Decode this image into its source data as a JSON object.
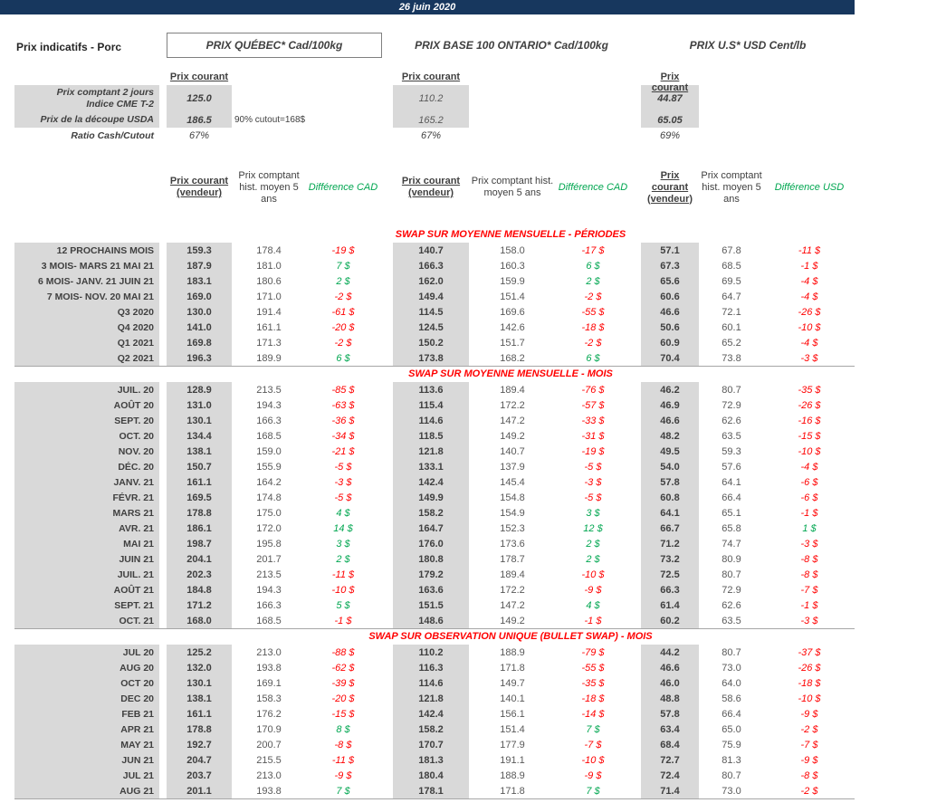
{
  "topbar": {
    "date": "26 juin 2020"
  },
  "header": {
    "title": "Prix indicatifs - Porc",
    "quebec": "PRIX QUÉBEC* Cad/100kg",
    "ontario": "PRIX BASE 100 ONTARIO* Cad/100kg",
    "us": "PRIX U.S* USD Cent/lb",
    "prix_courant": "Prix courant"
  },
  "summary": {
    "rows": [
      {
        "label": "Prix comptant 2 jours\nIndice CME T-2",
        "qc": "125.0",
        "note": "",
        "on": "110.2",
        "us": "44.87"
      },
      {
        "label": "Prix de la découpe USDA",
        "qc": "186.5",
        "note": "90% cutout=168$",
        "on": "165.2",
        "us": "65.05"
      },
      {
        "label": "Ratio Cash/Cutout",
        "qc": "67%",
        "note": "",
        "on": "67%",
        "us": "69%"
      }
    ]
  },
  "columns": {
    "pc": "Prix courant (vendeur)",
    "hist": "Prix comptant hist. moyen 5 ans",
    "diff_cad": "Différence CAD",
    "diff_usd": "Différence USD"
  },
  "sections": [
    {
      "title": "SWAP SUR MOYENNE MENSUELLE - PÉRIODES",
      "rows": [
        [
          "12 PROCHAINS MOIS",
          "159.3",
          "178.4",
          "-19 $",
          "140.7",
          "158.0",
          "-17 $",
          "57.1",
          "67.8",
          "-11 $"
        ],
        [
          "3 MOIS- MARS 21 MAI 21",
          "187.9",
          "181.0",
          "7 $",
          "166.3",
          "160.3",
          "6 $",
          "67.3",
          "68.5",
          "-1 $"
        ],
        [
          "6 MOIS- JANV. 21 JUIN 21",
          "183.1",
          "180.6",
          "2 $",
          "162.0",
          "159.9",
          "2 $",
          "65.6",
          "69.5",
          "-4 $"
        ],
        [
          "7 MOIS- NOV. 20 MAI 21",
          "169.0",
          "171.0",
          "-2 $",
          "149.4",
          "151.4",
          "-2 $",
          "60.6",
          "64.7",
          "-4 $"
        ],
        [
          "Q3 2020",
          "130.0",
          "191.4",
          "-61 $",
          "114.5",
          "169.6",
          "-55 $",
          "46.6",
          "72.1",
          "-26 $"
        ],
        [
          "Q4 2020",
          "141.0",
          "161.1",
          "-20 $",
          "124.5",
          "142.6",
          "-18 $",
          "50.6",
          "60.1",
          "-10 $"
        ],
        [
          "Q1 2021",
          "169.8",
          "171.3",
          "-2 $",
          "150.2",
          "151.7",
          "-2 $",
          "60.9",
          "65.2",
          "-4 $"
        ],
        [
          "Q2 2021",
          "196.3",
          "189.9",
          "6 $",
          "173.8",
          "168.2",
          "6 $",
          "70.4",
          "73.8",
          "-3 $"
        ]
      ]
    },
    {
      "title": "SWAP SUR MOYENNE MENSUELLE - MOIS",
      "rows": [
        [
          "JUIL. 20",
          "128.9",
          "213.5",
          "-85 $",
          "113.6",
          "189.4",
          "-76 $",
          "46.2",
          "80.7",
          "-35 $"
        ],
        [
          "AOÛT 20",
          "131.0",
          "194.3",
          "-63 $",
          "115.4",
          "172.2",
          "-57 $",
          "46.9",
          "72.9",
          "-26 $"
        ],
        [
          "SEPT. 20",
          "130.1",
          "166.3",
          "-36 $",
          "114.6",
          "147.2",
          "-33 $",
          "46.6",
          "62.6",
          "-16 $"
        ],
        [
          "OCT. 20",
          "134.4",
          "168.5",
          "-34 $",
          "118.5",
          "149.2",
          "-31 $",
          "48.2",
          "63.5",
          "-15 $"
        ],
        [
          "NOV. 20",
          "138.1",
          "159.0",
          "-21 $",
          "121.8",
          "140.7",
          "-19 $",
          "49.5",
          "59.3",
          "-10 $"
        ],
        [
          "DÉC. 20",
          "150.7",
          "155.9",
          "-5 $",
          "133.1",
          "137.9",
          "-5 $",
          "54.0",
          "57.6",
          "-4 $"
        ],
        [
          "JANV. 21",
          "161.1",
          "164.2",
          "-3 $",
          "142.4",
          "145.4",
          "-3 $",
          "57.8",
          "64.1",
          "-6 $"
        ],
        [
          "FÉVR. 21",
          "169.5",
          "174.8",
          "-5 $",
          "149.9",
          "154.8",
          "-5 $",
          "60.8",
          "66.4",
          "-6 $"
        ],
        [
          "MARS 21",
          "178.8",
          "175.0",
          "4 $",
          "158.2",
          "154.9",
          "3 $",
          "64.1",
          "65.1",
          "-1 $"
        ],
        [
          "AVR. 21",
          "186.1",
          "172.0",
          "14 $",
          "164.7",
          "152.3",
          "12 $",
          "66.7",
          "65.8",
          "1 $"
        ],
        [
          "MAI 21",
          "198.7",
          "195.8",
          "3 $",
          "176.0",
          "173.6",
          "2 $",
          "71.2",
          "74.7",
          "-3 $"
        ],
        [
          "JUIN 21",
          "204.1",
          "201.7",
          "2 $",
          "180.8",
          "178.7",
          "2 $",
          "73.2",
          "80.9",
          "-8 $"
        ],
        [
          "JUIL. 21",
          "202.3",
          "213.5",
          "-11 $",
          "179.2",
          "189.4",
          "-10 $",
          "72.5",
          "80.7",
          "-8 $"
        ],
        [
          "AOÛT 21",
          "184.8",
          "194.3",
          "-10 $",
          "163.6",
          "172.2",
          "-9 $",
          "66.3",
          "72.9",
          "-7 $"
        ],
        [
          "SEPT. 21",
          "171.2",
          "166.3",
          "5 $",
          "151.5",
          "147.2",
          "4 $",
          "61.4",
          "62.6",
          "-1 $"
        ],
        [
          "OCT. 21",
          "168.0",
          "168.5",
          "-1 $",
          "148.6",
          "149.2",
          "-1 $",
          "60.2",
          "63.5",
          "-3 $"
        ]
      ]
    },
    {
      "title": "SWAP SUR OBSERVATION UNIQUE (BULLET SWAP) - MOIS",
      "rows": [
        [
          "JUL 20",
          "125.2",
          "213.0",
          "-88 $",
          "110.2",
          "188.9",
          "-79 $",
          "44.2",
          "80.7",
          "-37 $"
        ],
        [
          "AUG 20",
          "132.0",
          "193.8",
          "-62 $",
          "116.3",
          "171.8",
          "-55 $",
          "46.6",
          "73.0",
          "-26 $"
        ],
        [
          "OCT 20",
          "130.1",
          "169.1",
          "-39 $",
          "114.6",
          "149.7",
          "-35 $",
          "46.0",
          "64.0",
          "-18 $"
        ],
        [
          "DEC 20",
          "138.1",
          "158.3",
          "-20 $",
          "121.8",
          "140.1",
          "-18 $",
          "48.8",
          "58.6",
          "-10 $"
        ],
        [
          "FEB 21",
          "161.1",
          "176.2",
          "-15 $",
          "142.4",
          "156.1",
          "-14 $",
          "57.8",
          "66.4",
          "-9 $"
        ],
        [
          "APR 21",
          "178.8",
          "170.9",
          "8 $",
          "158.2",
          "151.4",
          "7 $",
          "63.4",
          "65.0",
          "-2 $"
        ],
        [
          "MAY 21",
          "192.7",
          "200.7",
          "-8 $",
          "170.7",
          "177.9",
          "-7 $",
          "68.4",
          "75.9",
          "-7 $"
        ],
        [
          "JUN 21",
          "204.7",
          "215.5",
          "-11 $",
          "181.3",
          "191.1",
          "-10 $",
          "72.7",
          "81.3",
          "-9 $"
        ],
        [
          "JUL 21",
          "203.7",
          "213.0",
          "-9 $",
          "180.4",
          "188.9",
          "-9 $",
          "72.4",
          "80.7",
          "-8 $"
        ],
        [
          "AUG 21",
          "201.1",
          "193.8",
          "7 $",
          "178.1",
          "171.8",
          "7 $",
          "71.4",
          "73.0",
          "-2 $"
        ]
      ]
    }
  ]
}
